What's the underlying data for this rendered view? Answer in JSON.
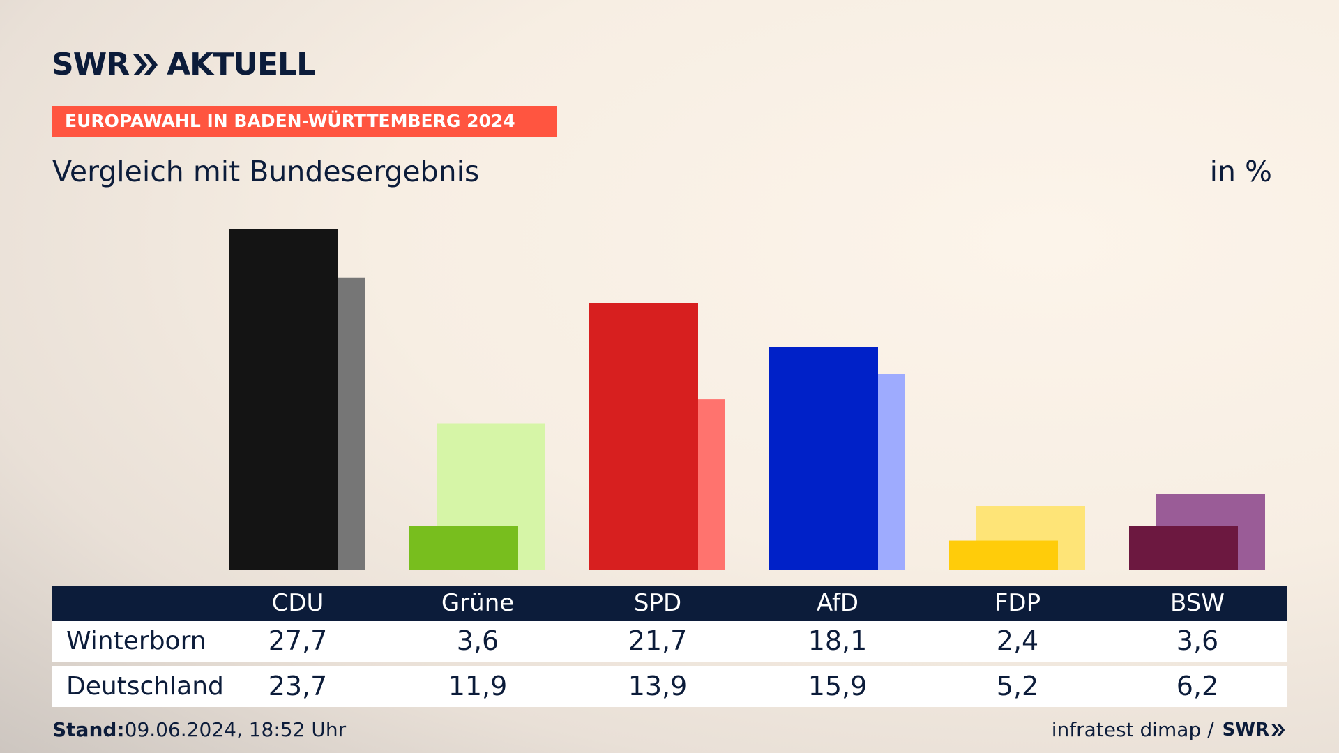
{
  "header": {
    "logo_left": "SWR",
    "logo_right": "AKTUELL",
    "banner": "EUROPAWAHL IN BADEN-WÜRTTEMBERG 2024",
    "subtitle": "Vergleich mit Bundesergebnis",
    "unit": "in %"
  },
  "chart_data": {
    "type": "bar",
    "categories": [
      "CDU",
      "Grüne",
      "SPD",
      "AfD",
      "FDP",
      "BSW"
    ],
    "series": [
      {
        "name": "Winterborn",
        "values": [
          27.7,
          3.6,
          21.7,
          18.1,
          2.4,
          3.6
        ],
        "colors": [
          "#141414",
          "#78be1e",
          "#d71f1f",
          "#0021c8",
          "#ffcc0a",
          "#6c1840"
        ]
      },
      {
        "name": "Deutschland",
        "values": [
          23.7,
          11.9,
          13.9,
          15.9,
          5.2,
          6.2
        ],
        "colors": [
          "#767676",
          "#d6f5a7",
          "#ff736e",
          "#9eabfe",
          "#fee477",
          "#9a5c97"
        ]
      }
    ],
    "value_labels": {
      "Winterborn": [
        "27,7",
        "3,6",
        "21,7",
        "18,1",
        "2,4",
        "3,6"
      ],
      "Deutschland": [
        "23,7",
        "11,9",
        "13,9",
        "15,9",
        "5,2",
        "6,2"
      ]
    },
    "ylim": [
      0,
      27.7
    ],
    "grid": false,
    "legend": "table-below"
  },
  "footer": {
    "stand_label": "Stand:",
    "stand_value": "09.06.2024, 18:52 Uhr",
    "source": "infratest dimap /",
    "source_logo": "SWR"
  }
}
